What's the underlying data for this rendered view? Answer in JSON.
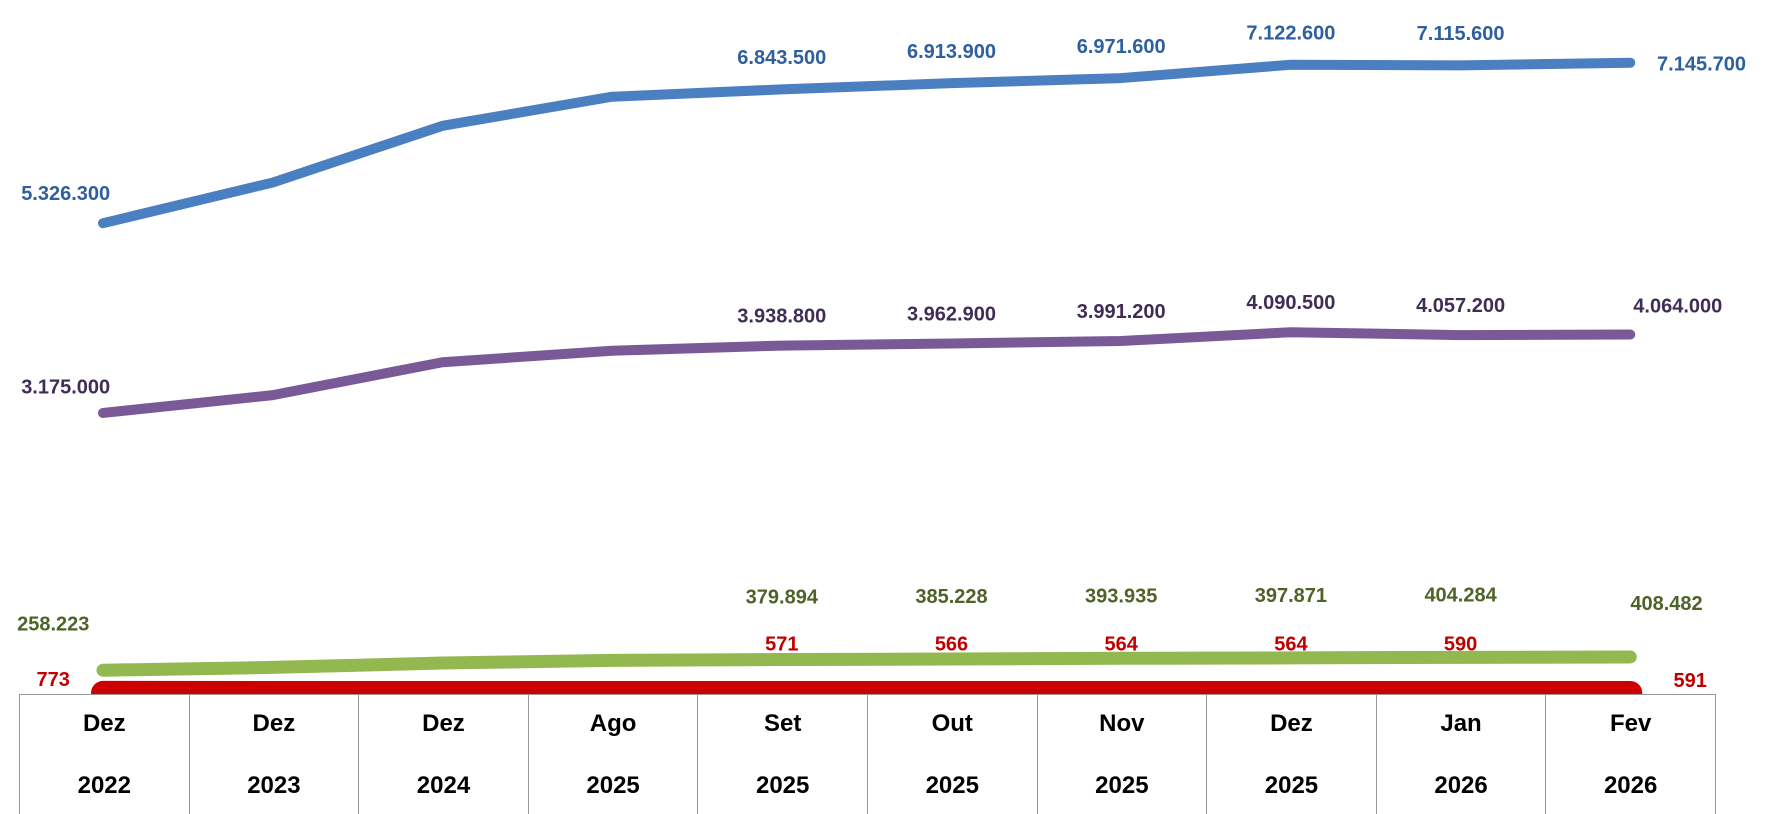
{
  "chart_data": {
    "type": "line",
    "categories": [
      "Dez 2022",
      "Dez 2023",
      "Dez 2024",
      "Ago 2025",
      "Set 2025",
      "Out 2025",
      "Nov 2025",
      "Dez 2025",
      "Jan 2026",
      "Fev 2026"
    ],
    "ylim": [
      0,
      7800000
    ],
    "series": [
      {
        "color": "#4a7fc1",
        "label_color": "#2e5f9e",
        "values": [
          5326300,
          5787000,
          6430000,
          6760000,
          6843500,
          6913900,
          6971600,
          7122600,
          7115600,
          7145700
        ],
        "value_labels": [
          "5.326.300",
          null,
          null,
          null,
          "6.843.500",
          "6.913.900",
          "6.971.600",
          "7.122.600",
          "7.115.600",
          "7.145.700"
        ]
      },
      {
        "color": "#7a5a96",
        "label_color": "#3f2d55",
        "values": [
          3175000,
          3377000,
          3750000,
          3880000,
          3938800,
          3962900,
          3991200,
          4090500,
          4057200,
          4064000
        ],
        "value_labels": [
          "3.175.000",
          null,
          null,
          null,
          "3.938.800",
          "3.962.900",
          "3.991.200",
          "4.090.500",
          "4.057.200",
          "4.064.000"
        ]
      },
      {
        "color": "#93b850",
        "label_color": "#4f6228",
        "values": [
          258223,
          290000,
          340000,
          370000,
          379894,
          385228,
          393935,
          397871,
          404284,
          408482
        ],
        "value_labels": [
          "258.223",
          null,
          null,
          null,
          "379.894",
          "385.228",
          "393.935",
          "397.871",
          "404.284",
          "408.482"
        ]
      },
      {
        "color": "#cc0000",
        "label_color": "#c00000",
        "values": [
          773,
          700,
          650,
          600,
          571,
          566,
          564,
          564,
          590,
          591
        ],
        "value_labels": [
          "773",
          null,
          null,
          null,
          "571",
          "566",
          "564",
          "564",
          "590",
          "591"
        ]
      }
    ]
  }
}
